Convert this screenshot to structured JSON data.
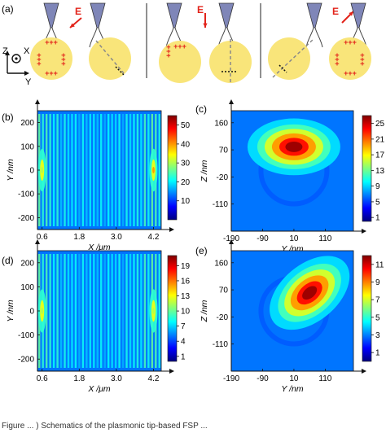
{
  "panel_a": {
    "label": "(a)",
    "field_symbol": "E",
    "axes": {
      "z": "Z",
      "x": "X",
      "y": "Y"
    },
    "charge_mark": "+++",
    "charge_mark_vertical": "+++",
    "colors": {
      "sphere": "#f9e57a",
      "charge": "#e2231a",
      "arrow": "#e2231a",
      "tip": "#7f86b8",
      "dash": "#8a8a8a"
    }
  },
  "panels": [
    {
      "id": "b",
      "label": "(b)",
      "xlabel": "X /μm",
      "ylabel": "Y /nm"
    },
    {
      "id": "c",
      "label": "(c)",
      "xlabel": "Y /nm",
      "ylabel": "Z /nm"
    },
    {
      "id": "d",
      "label": "(d)",
      "xlabel": "X /μm",
      "ylabel": "Y /nm"
    },
    {
      "id": "e",
      "label": "(e)",
      "xlabel": "Y /nm",
      "ylabel": "Z /nm"
    }
  ],
  "caption": "Figure ... ) Schematics of the plasmonic tip-based FSP ...",
  "chart_data": [
    {
      "type": "heatmap",
      "title": "",
      "xlabel": "X /μm",
      "ylabel": "Y /nm",
      "x_ticks": [
        0.6,
        1.8,
        3.0,
        4.2
      ],
      "y_ticks": [
        200,
        100,
        0,
        -100,
        -200
      ],
      "x_tick_labels": [
        "0.6",
        "1.8",
        "3.0",
        "4.2"
      ],
      "y_tick_labels": [
        "200",
        "100",
        "0",
        "-100",
        "-200"
      ],
      "xlim": [
        0.45,
        4.45
      ],
      "ylim": [
        -250,
        250
      ],
      "colorbar_ticks": [
        50,
        40,
        30,
        20,
        10
      ],
      "colorbar_range": [
        0,
        55
      ],
      "hotspots_x": [
        0.6,
        4.2
      ]
    },
    {
      "type": "heatmap",
      "title": "",
      "xlabel": "Y /nm",
      "ylabel": "Z /nm",
      "x_ticks": [
        -190,
        -90,
        10,
        110
      ],
      "y_ticks": [
        160,
        70,
        -20,
        -110
      ],
      "x_tick_labels": [
        "-190",
        "-90",
        "10",
        "110"
      ],
      "y_tick_labels": [
        "160",
        "70",
        "-20",
        "-110"
      ],
      "xlim": [
        -190,
        200
      ],
      "ylim": [
        -200,
        200
      ],
      "colorbar_ticks": [
        25,
        21,
        17,
        13,
        9,
        5,
        1
      ],
      "colorbar_range": [
        0,
        27
      ],
      "hotspot_center": [
        10,
        80
      ]
    },
    {
      "type": "heatmap",
      "title": "",
      "xlabel": "X /μm",
      "ylabel": "Y /nm",
      "x_ticks": [
        0.6,
        1.8,
        3.0,
        4.2
      ],
      "y_ticks": [
        200,
        100,
        0,
        -100,
        -200
      ],
      "x_tick_labels": [
        "0.6",
        "1.8",
        "3.0",
        "4.2"
      ],
      "y_tick_labels": [
        "200",
        "100",
        "0",
        "-100",
        "-200"
      ],
      "xlim": [
        0.45,
        4.45
      ],
      "ylim": [
        -250,
        250
      ],
      "colorbar_ticks": [
        19,
        16,
        13,
        10,
        7,
        4,
        1
      ],
      "colorbar_range": [
        0,
        21
      ],
      "hotspots_x": [
        0.6,
        4.2
      ]
    },
    {
      "type": "heatmap",
      "title": "",
      "xlabel": "Y /nm",
      "ylabel": "Z /nm",
      "x_ticks": [
        -190,
        -90,
        10,
        110
      ],
      "y_ticks": [
        160,
        70,
        -20,
        -110
      ],
      "x_tick_labels": [
        "-190",
        "-90",
        "10",
        "110"
      ],
      "y_tick_labels": [
        "160",
        "70",
        "-20",
        "-110"
      ],
      "xlim": [
        -190,
        200
      ],
      "ylim": [
        -200,
        200
      ],
      "colorbar_ticks": [
        11,
        9,
        7,
        5,
        3,
        1
      ],
      "colorbar_range": [
        0,
        12
      ],
      "hotspot_center": [
        60,
        60
      ]
    }
  ]
}
